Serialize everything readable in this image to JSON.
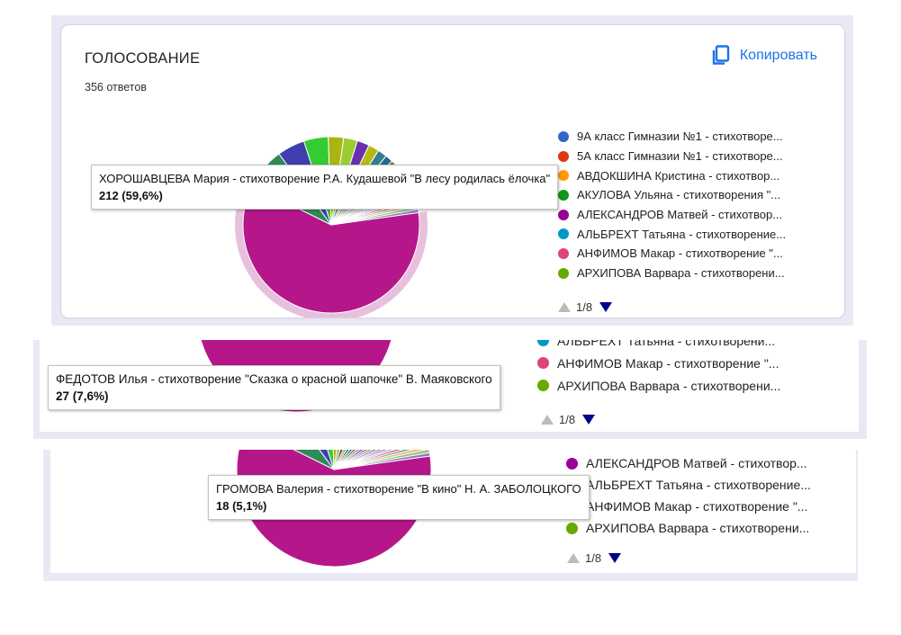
{
  "card": {
    "title": "ГОЛОСОВАНИЕ",
    "responses": "356 ответов",
    "copy_label": "Копировать"
  },
  "legend_main": [
    {
      "label": "9А класс Гимназии №1 - стихотворе...",
      "color": "#3366cc"
    },
    {
      "label": "5А класс Гимназии №1 - стихотворе...",
      "color": "#dc3912"
    },
    {
      "label": "АВДОКШИНА Кристина - стихотвор...",
      "color": "#ff9900"
    },
    {
      "label": "АКУЛОВА Ульяна - стихотворения \"...",
      "color": "#109618"
    },
    {
      "label": "АЛЕКСАНДРОВ Матвей - стихотвор...",
      "color": "#990099"
    },
    {
      "label": "АЛЬБРЕХТ Татьяна - стихотворение...",
      "color": "#0099c6"
    },
    {
      "label": "АНФИМОВ Макар - стихотворение \"...",
      "color": "#dd4477"
    },
    {
      "label": "АРХИПОВА Варвара - стихотворени...",
      "color": "#66aa00"
    }
  ],
  "legend_second": [
    {
      "label": "АЛЬБРЕХТ Татьяна - стихотворени...",
      "color": "#0099c6"
    },
    {
      "label": "АНФИМОВ Макар - стихотворение \"...",
      "color": "#dd4477"
    },
    {
      "label": "АРХИПОВА Варвара - стихотворени...",
      "color": "#66aa00"
    }
  ],
  "legend_third": [
    {
      "label": "АЛЕКСАНДРОВ Матвей - стихотвор...",
      "color": "#990099"
    },
    {
      "label": "АЛЬБРЕХТ Татьяна - стихотворение...",
      "color": "#0099c6"
    },
    {
      "label": "АНФИМОВ Макар - стихотворение \"...",
      "color": "#dd4477"
    },
    {
      "label": "АРХИПОВА Варвара - стихотворени...",
      "color": "#66aa00"
    }
  ],
  "pager": "1/8",
  "tooltips": [
    {
      "label": "ХОРОШАВЦЕВА Мария - стихотворение Р.А. Кудашевой \"В лесу родилась ёлочка\"",
      "value": "212 (59,6%)"
    },
    {
      "label": "ФЕДОТОВ Илья - стихотворение \"Сказка о красной шапочке\" В. Маяковского",
      "value": "27 (7,6%)"
    },
    {
      "label": "ГРОМОВА Валерия - стихотворение \"В кино\" Н. А. ЗАБОЛОЦКОГО",
      "value": "18 (5,1%)"
    }
  ],
  "chart_data": {
    "type": "pie",
    "total_responses": 356,
    "slices": [
      {
        "name": "ХОРОШАВЦЕВА Мария - стихотворение Р.А. Кудашевой \"В лесу родилась ёлочка\"",
        "value": 212,
        "percent": 59.6,
        "color": "#b5168a"
      },
      {
        "name": "ФЕДОТОВ Илья - стихотворение \"Сказка о красной шапочке\" В. Маяковского",
        "value": 27,
        "percent": 7.6,
        "color": "#2e8b57"
      },
      {
        "name": "ГРОМОВА Валерия - стихотворение \"В кино\" Н. А. ЗАБОЛОЦКОГО",
        "value": 18,
        "percent": 5.1,
        "color": "#3f3fae"
      },
      {
        "name": "",
        "value": 16,
        "color": "#33cc33"
      },
      {
        "name": "",
        "value": 10,
        "color": "#aab511"
      },
      {
        "name": "",
        "value": 9,
        "color": "#9acd32"
      },
      {
        "name": "",
        "value": 8,
        "color": "#6a2fb0"
      },
      {
        "name": "",
        "value": 7,
        "color": "#b8b816"
      },
      {
        "name": "",
        "value": 6,
        "color": "#2f7f8f"
      },
      {
        "name": "",
        "value": 5,
        "color": "#226b8a"
      },
      {
        "name": "",
        "value": 5,
        "color": "#7a7a2a"
      },
      {
        "name": "",
        "value": 4,
        "color": "#c46aa0"
      },
      {
        "name": "",
        "value": 4,
        "color": "#4b6fb5"
      },
      {
        "name": "",
        "value": 3,
        "color": "#8e3b8e"
      },
      {
        "name": "",
        "value": 3,
        "color": "#d17b3b"
      },
      {
        "name": "",
        "value": 3,
        "color": "#5c9bd1"
      },
      {
        "name": "",
        "value": 2,
        "color": "#a0522d"
      },
      {
        "name": "",
        "value": 2,
        "color": "#7b68ee"
      },
      {
        "name": "",
        "value": 2,
        "color": "#c8a2c8"
      },
      {
        "name": "",
        "value": 2,
        "color": "#e06666"
      },
      {
        "name": "",
        "value": 2,
        "color": "#76a5af"
      },
      {
        "name": "",
        "value": 2,
        "color": "#f6b26b"
      },
      {
        "name": "",
        "value": 2,
        "color": "#93c47d"
      },
      {
        "name": "",
        "value": 2,
        "color": "#8e7cc3"
      }
    ]
  }
}
